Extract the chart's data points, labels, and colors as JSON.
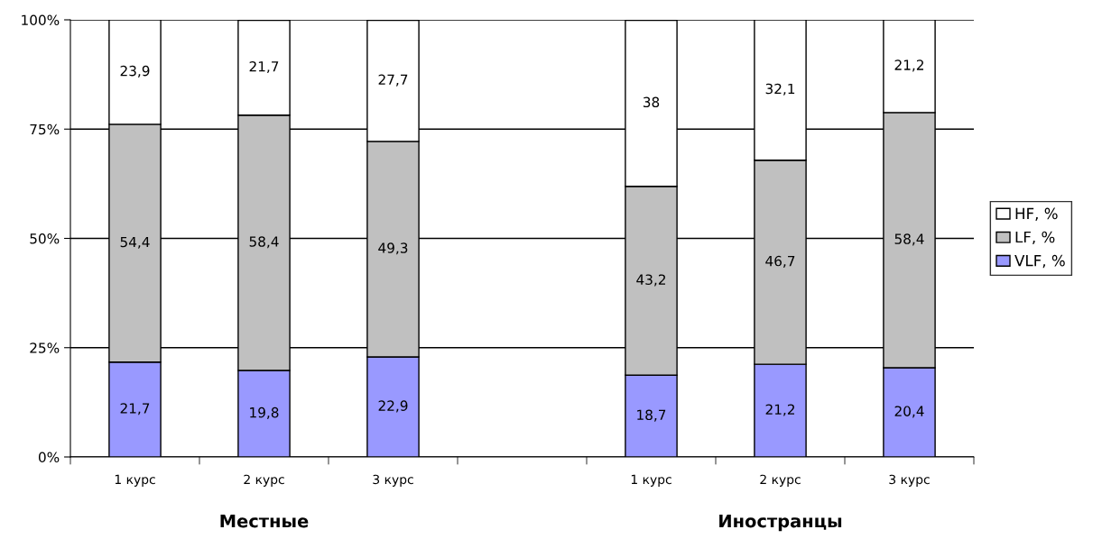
{
  "chart_data": {
    "type": "bar",
    "stacked": true,
    "categories": [
      "1 курс",
      "2 курс",
      "3 курс",
      null,
      "1 курс",
      "2 курс",
      "3 курс"
    ],
    "series": [
      {
        "name": "VLF, %",
        "color": "#9999ff",
        "values": [
          21.7,
          19.8,
          22.9,
          null,
          18.7,
          21.2,
          20.4
        ],
        "value_labels": [
          "21,7",
          "19,8",
          "22,9",
          null,
          "18,7",
          "21,2",
          "20,4"
        ]
      },
      {
        "name": "LF, %",
        "color": "#c0c0c0",
        "values": [
          54.4,
          58.4,
          49.3,
          null,
          43.2,
          46.7,
          58.4
        ],
        "value_labels": [
          "54,4",
          "58,4",
          "49,3",
          null,
          "43,2",
          "46,7",
          "58,4"
        ]
      },
      {
        "name": "HF, %",
        "color": "#ffffff",
        "values": [
          23.9,
          21.7,
          27.7,
          null,
          38,
          32.1,
          21.2
        ],
        "value_labels": [
          "23,9",
          "21,7",
          "27,7",
          null,
          "38",
          "32,1",
          "21,2"
        ]
      }
    ],
    "ylim": [
      0,
      100
    ],
    "yticks": [
      {
        "value": 0,
        "label": "0%"
      },
      {
        "value": 25,
        "label": "25%"
      },
      {
        "value": 50,
        "label": "50%"
      },
      {
        "value": 75,
        "label": "75%"
      },
      {
        "value": 100,
        "label": "100%"
      }
    ],
    "grid": "y",
    "legend": "right",
    "annotations": [
      "Местные",
      "Иностранцы"
    ]
  }
}
